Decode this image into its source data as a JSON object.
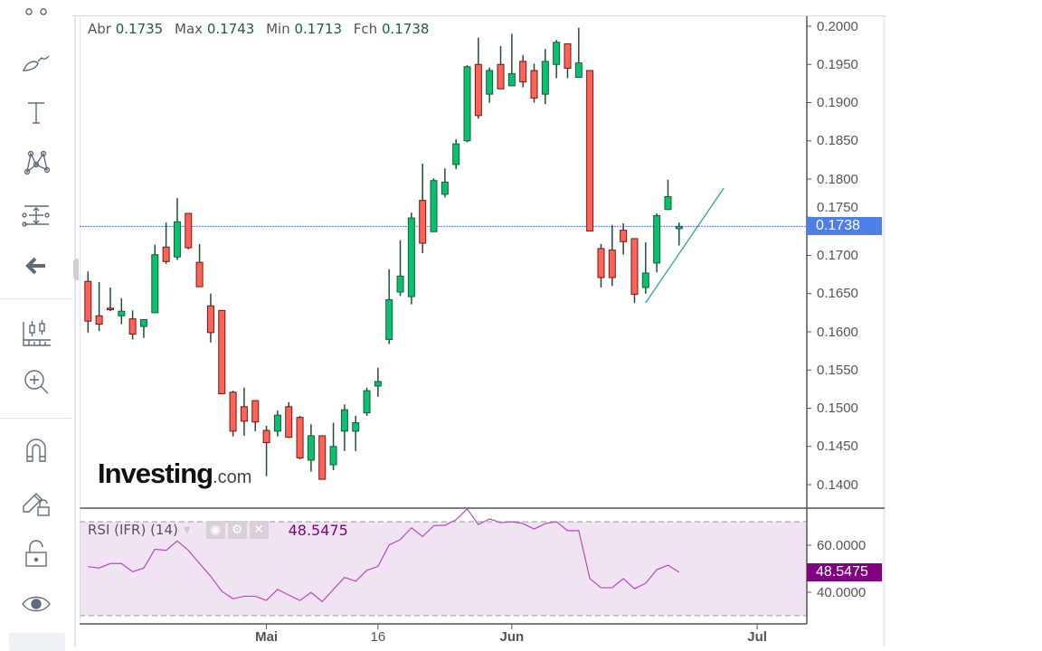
{
  "ohlc": {
    "open_label": "Abr",
    "open": "0.1735",
    "high_label": "Max",
    "high": "0.1743",
    "low_label": "Min",
    "low": "0.1713",
    "close_label": "Fch",
    "close": "0.1738"
  },
  "toolbar": {
    "icons": [
      "circles-icon",
      "brush-icon",
      "text-icon",
      "pattern-icon",
      "fibonacci-icon",
      "back-arrow-icon",
      "measure-icon",
      "zoom-in-icon",
      "magnet-icon",
      "lock-drawing-icon",
      "unlock-icon",
      "eye-icon"
    ]
  },
  "logo": {
    "main": "Investing",
    "suffix": ".com"
  },
  "colors": {
    "up": "#06c270",
    "down": "#ff6358",
    "up_border": "#1d5a3a",
    "down_border": "#6e1a16",
    "last_price": "#4d7fe6",
    "rsi": "#b44bc1",
    "rsi_tag": "#800080",
    "rsi_fill": "#f1e4f2"
  },
  "price_axis": {
    "ticks": [
      "0.2000",
      "0.1950",
      "0.1900",
      "0.1850",
      "0.1800",
      "0.1750",
      "0.1700",
      "0.1650",
      "0.1600",
      "0.1550",
      "0.1500",
      "0.1450",
      "0.1400"
    ],
    "last_price": "0.1738"
  },
  "rsi": {
    "label": "RSI (IFR) (14)",
    "value": "48.5475",
    "ticks": [
      "60.0000",
      "40.0000"
    ],
    "levels": [
      70,
      30
    ]
  },
  "x_axis": {
    "ticks": [
      {
        "label": "Mai",
        "bar": 16,
        "bold": true
      },
      {
        "label": "16",
        "bar": 26,
        "bold": false
      },
      {
        "label": "Jun",
        "bar": 38,
        "bold": true
      },
      {
        "label": "Jul",
        "bar": 60,
        "bold": true
      }
    ]
  },
  "chart_data": {
    "type": "candlestick",
    "price_range": [
      0.138,
      0.201
    ],
    "candles": [
      [
        0.1666,
        0.1679,
        0.1599,
        0.1614
      ],
      [
        0.1621,
        0.1665,
        0.1601,
        0.161
      ],
      [
        0.1631,
        0.1658,
        0.1627,
        0.1629
      ],
      [
        0.1621,
        0.1644,
        0.161,
        0.1627
      ],
      [
        0.1617,
        0.1628,
        0.159,
        0.1597
      ],
      [
        0.1607,
        0.1616,
        0.1592,
        0.1616
      ],
      [
        0.1625,
        0.1714,
        0.1625,
        0.1701
      ],
      [
        0.1711,
        0.1743,
        0.1689,
        0.1692
      ],
      [
        0.1698,
        0.1775,
        0.1694,
        0.1744
      ],
      [
        0.1755,
        0.1755,
        0.1708,
        0.171
      ],
      [
        0.1691,
        0.1715,
        0.1659,
        0.1659
      ],
      [
        0.1634,
        0.165,
        0.1586,
        0.1599
      ],
      [
        0.1628,
        0.1628,
        0.1519,
        0.1519
      ],
      [
        0.1521,
        0.1523,
        0.1463,
        0.147
      ],
      [
        0.1502,
        0.1527,
        0.1464,
        0.1483
      ],
      [
        0.151,
        0.151,
        0.147,
        0.1482
      ],
      [
        0.1471,
        0.1477,
        0.1411,
        0.1455
      ],
      [
        0.147,
        0.1497,
        0.1463,
        0.1491
      ],
      [
        0.1502,
        0.1508,
        0.1461,
        0.1462
      ],
      [
        0.1488,
        0.149,
        0.1433,
        0.1435
      ],
      [
        0.1432,
        0.1479,
        0.1417,
        0.1464
      ],
      [
        0.1464,
        0.1464,
        0.1407,
        0.1407
      ],
      [
        0.1426,
        0.1481,
        0.1419,
        0.145
      ],
      [
        0.147,
        0.1505,
        0.1444,
        0.1498
      ],
      [
        0.147,
        0.149,
        0.1444,
        0.1481
      ],
      [
        0.1494,
        0.1527,
        0.149,
        0.1523
      ],
      [
        0.1529,
        0.1553,
        0.1515,
        0.1535
      ],
      [
        0.159,
        0.1682,
        0.1584,
        0.1642
      ],
      [
        0.1652,
        0.172,
        0.1647,
        0.1673
      ],
      [
        0.1646,
        0.1756,
        0.1636,
        0.1749
      ],
      [
        0.1772,
        0.182,
        0.1703,
        0.1716
      ],
      [
        0.1731,
        0.1801,
        0.1731,
        0.1798
      ],
      [
        0.178,
        0.1814,
        0.1776,
        0.1796
      ],
      [
        0.1819,
        0.1852,
        0.1813,
        0.1846
      ],
      [
        0.185,
        0.1949,
        0.1848,
        0.1947
      ],
      [
        0.195,
        0.1985,
        0.1879,
        0.1883
      ],
      [
        0.1911,
        0.1946,
        0.19,
        0.1942
      ],
      [
        0.195,
        0.1974,
        0.1918,
        0.1918
      ],
      [
        0.1922,
        0.199,
        0.1922,
        0.1938
      ],
      [
        0.1954,
        0.1962,
        0.192,
        0.1927
      ],
      [
        0.1942,
        0.1951,
        0.19,
        0.1906
      ],
      [
        0.1911,
        0.197,
        0.1898,
        0.1954
      ],
      [
        0.195,
        0.1982,
        0.1932,
        0.1979
      ],
      [
        0.1977,
        0.1977,
        0.1932,
        0.1945
      ],
      [
        0.1933,
        0.1998,
        0.1933,
        0.1952
      ],
      [
        0.1942,
        0.1942,
        0.1732,
        0.1732
      ],
      [
        0.1709,
        0.1715,
        0.1658,
        0.1671
      ],
      [
        0.1707,
        0.174,
        0.166,
        0.1671
      ],
      [
        0.1733,
        0.1742,
        0.1701,
        0.1718
      ],
      [
        0.1722,
        0.1722,
        0.1638,
        0.1649
      ],
      [
        0.1658,
        0.1717,
        0.165,
        0.1677
      ],
      [
        0.169,
        0.1755,
        0.1678,
        0.1752
      ],
      [
        0.176,
        0.1799,
        0.176,
        0.1777
      ],
      [
        0.1735,
        0.1743,
        0.1713,
        0.1738
      ]
    ],
    "trendline": {
      "from": {
        "bar": 50,
        "price": 0.1638
      },
      "to": {
        "bar": 57,
        "price": 0.1788
      }
    },
    "rsi_values": [
      50.9,
      50.3,
      52.2,
      52.2,
      48.7,
      50.3,
      58.3,
      57.8,
      61.8,
      57.8,
      52.2,
      46.8,
      40.4,
      37.2,
      38.3,
      38.3,
      36.5,
      41.2,
      38.8,
      36.5,
      39.9,
      36.0,
      41.2,
      46.3,
      44.7,
      49.3,
      51.0,
      60.1,
      62.4,
      67.4,
      63.7,
      68.3,
      68.5,
      70.8,
      75.4,
      68.8,
      71.2,
      69.6,
      70.0,
      69.2,
      66.9,
      69.2,
      70.0,
      66.2,
      66.2,
      45.8,
      41.9,
      41.9,
      45.8,
      41.5,
      43.8,
      49.6,
      51.5,
      48.5475
    ]
  }
}
